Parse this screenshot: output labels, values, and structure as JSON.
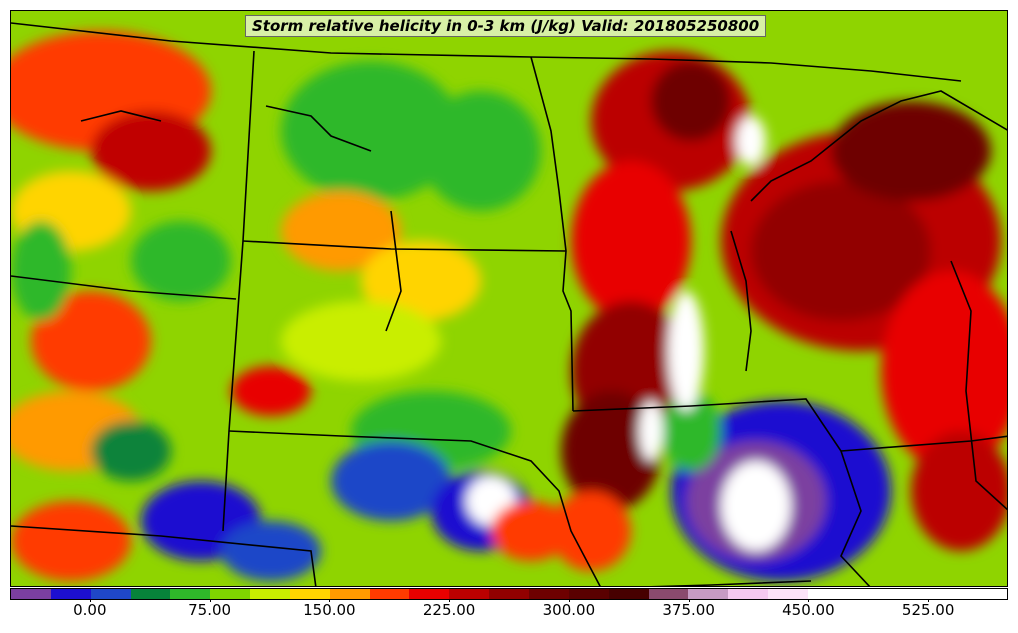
{
  "title": "Storm relative helicity in 0-3 km (J/kg) Valid: 201805250800",
  "colorbar": {
    "colors": [
      "#7b3fa0",
      "#1d0fd0",
      "#1f47c8",
      "#07833a",
      "#2fb82a",
      "#7fd400",
      "#c9ee00",
      "#ffd400",
      "#ff9a00",
      "#ff3b00",
      "#e80000",
      "#bb0000",
      "#920000",
      "#6e0000",
      "#5a0000",
      "#470000",
      "#8a4a6e",
      "#c79bc4",
      "#f5c9f0",
      "#fce3f8",
      "#ffffff",
      "#ffffff",
      "#ffffff",
      "#ffffff",
      "#ffffff"
    ],
    "ticks": [
      "0.00",
      "75.00",
      "150.00",
      "225.00",
      "300.00",
      "375.00",
      "450.00",
      "525.00"
    ],
    "tick_values": [
      0,
      75,
      150,
      225,
      300,
      375,
      450,
      525
    ],
    "min": -50,
    "max": 575
  }
}
